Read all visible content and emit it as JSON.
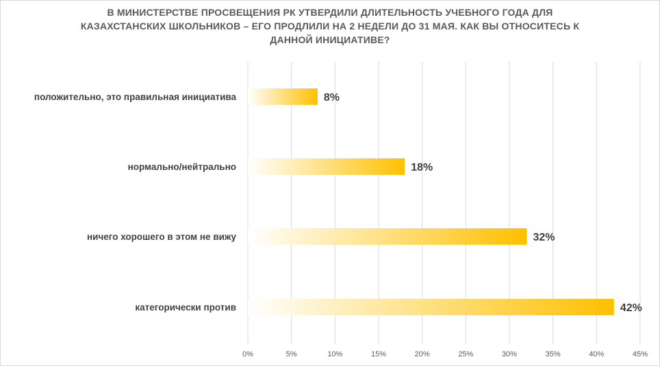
{
  "chart_data": {
    "type": "bar",
    "orientation": "horizontal",
    "title_lines": [
      "В МИНИСТЕРСТВЕ ПРОСВЕЩЕНИЯ РК УТВЕРДИЛИ ДЛИТЕЛЬНОСТЬ УЧЕБНОГО ГОДА ДЛЯ",
      "КАЗАХСТАНСКИХ ШКОЛЬНИКОВ – ЕГО ПРОДЛИЛИ НА 2 НЕДЕЛИ ДО 31 МАЯ. КАК ВЫ ОТНОСИТЕСЬ К",
      "ДАННОЙ ИНИЦИАТИВЕ?"
    ],
    "categories": [
      "положительно, это правильная инициатива",
      "нормально/нейтрально",
      "ничего хорошего в этом не вижу",
      "категорически против"
    ],
    "values": [
      8,
      18,
      32,
      42
    ],
    "value_labels": [
      "8%",
      "18%",
      "32%",
      "42%"
    ],
    "xlim": [
      0,
      45
    ],
    "x_ticks": [
      0,
      5,
      10,
      15,
      20,
      25,
      30,
      35,
      40,
      45
    ],
    "x_tick_labels": [
      "0%",
      "5%",
      "10%",
      "15%",
      "20%",
      "25%",
      "30%",
      "35%",
      "40%",
      "45%"
    ],
    "grid": true,
    "legend": "none",
    "bar_color": "#FFC000",
    "bar_fade_color": "#FFFFFF"
  }
}
